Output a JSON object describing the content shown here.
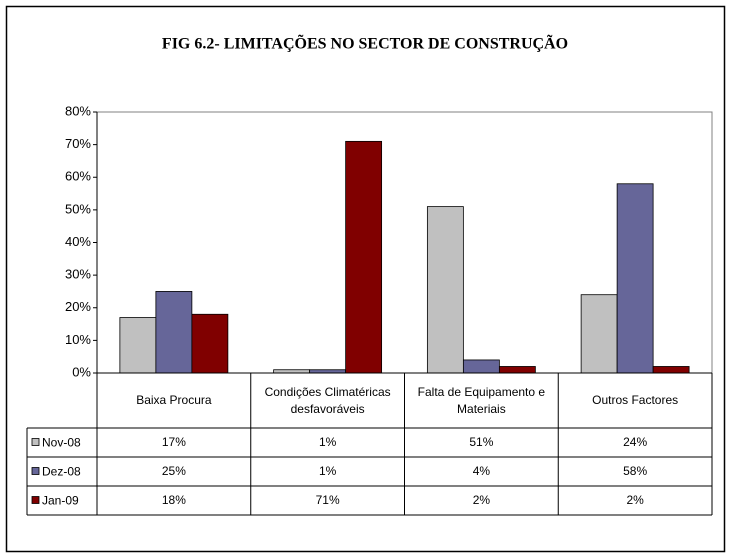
{
  "chart_data": {
    "type": "bar",
    "title": "FIG 6.2- LIMITAÇÕES  NO SECTOR DE CONSTRUÇÃO",
    "categories": [
      "Baixa Procura",
      "Condições Climatéricas desfavoráveis",
      "Falta de  Equipamento e Materiais",
      "Outros Factores"
    ],
    "series": [
      {
        "name": "Nov-08",
        "color": "#c0c0c0",
        "values": [
          17,
          1,
          51,
          24
        ],
        "value_labels": [
          "17%",
          "1%",
          "51%",
          "24%"
        ]
      },
      {
        "name": "Dez-08",
        "color": "#666699",
        "values": [
          25,
          1,
          4,
          58
        ],
        "value_labels": [
          "25%",
          "1%",
          "4%",
          "58%"
        ]
      },
      {
        "name": "Jan-09",
        "color": "#800000",
        "values": [
          18,
          71,
          2,
          2
        ],
        "value_labels": [
          "18%",
          "71%",
          "2%",
          "2%"
        ]
      }
    ],
    "ylim": [
      0,
      80
    ],
    "yticks": [
      {
        "value": 0,
        "label": "0%"
      },
      {
        "value": 10,
        "label": "10%"
      },
      {
        "value": 20,
        "label": "20%"
      },
      {
        "value": 30,
        "label": "30%"
      },
      {
        "value": 40,
        "label": "40%"
      },
      {
        "value": 50,
        "label": "50%"
      },
      {
        "value": 60,
        "label": "60%"
      },
      {
        "value": 70,
        "label": "70%"
      },
      {
        "value": 80,
        "label": "80%"
      }
    ],
    "grid": false
  }
}
